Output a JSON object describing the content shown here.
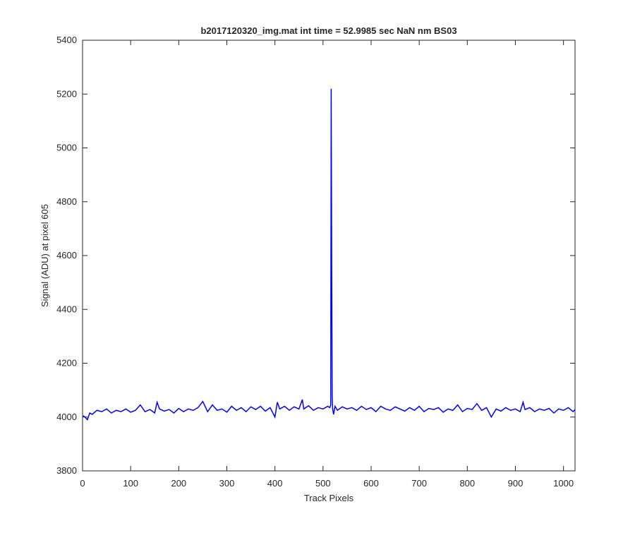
{
  "chart_data": {
    "type": "line",
    "title": "b2017120320_img.mat int time = 52.9985 sec  NaN nm BS03",
    "x_label": "Track Pixels",
    "y_label": "Signal (ADU) at pixel 605",
    "xlim": [
      0,
      1024
    ],
    "xticks": [
      0,
      100,
      200,
      300,
      400,
      500,
      600,
      700,
      800,
      900,
      1000
    ],
    "ylim": [
      3800,
      5400
    ],
    "yticks": [
      3800,
      4000,
      4200,
      4400,
      4600,
      4800,
      5000,
      5200,
      5400
    ],
    "grid": false,
    "x": [
      1,
      5,
      10,
      15,
      20,
      30,
      40,
      50,
      60,
      70,
      80,
      90,
      100,
      110,
      120,
      130,
      140,
      150,
      155,
      160,
      170,
      180,
      190,
      200,
      210,
      220,
      230,
      240,
      250,
      260,
      270,
      280,
      290,
      300,
      310,
      320,
      330,
      340,
      350,
      360,
      370,
      380,
      390,
      400,
      405,
      410,
      420,
      430,
      440,
      450,
      457,
      460,
      470,
      480,
      490,
      500,
      510,
      514,
      516,
      517,
      518,
      519,
      520,
      522,
      525,
      530,
      540,
      550,
      560,
      570,
      580,
      590,
      600,
      610,
      620,
      630,
      640,
      650,
      660,
      670,
      680,
      690,
      700,
      710,
      720,
      730,
      740,
      750,
      760,
      770,
      780,
      790,
      800,
      810,
      820,
      830,
      840,
      850,
      860,
      870,
      880,
      890,
      900,
      910,
      916,
      920,
      930,
      940,
      950,
      960,
      970,
      980,
      990,
      1000,
      1010,
      1020,
      1024
    ],
    "series": [
      {
        "color": "#0000ff",
        "values": [
          4005,
          4000,
          3990,
          4015,
          4010,
          4025,
          4020,
          4030,
          4015,
          4025,
          4020,
          4030,
          4018,
          4025,
          4045,
          4020,
          4028,
          4015,
          4055,
          4030,
          4022,
          4028,
          4015,
          4032,
          4020,
          4030,
          4025,
          4035,
          4058,
          4020,
          4045,
          4025,
          4030,
          4018,
          4040,
          4025,
          4035,
          4020,
          4038,
          4028,
          4040,
          4022,
          4035,
          4000,
          4055,
          4030,
          4040,
          4025,
          4038,
          4030,
          4065,
          4030,
          4042,
          4025,
          4035,
          4030,
          4040,
          4035,
          4045,
          5220,
          4600,
          4080,
          4030,
          4010,
          4040,
          4025,
          4038,
          4030,
          4035,
          4025,
          4040,
          4028,
          4035,
          4020,
          4040,
          4030,
          4025,
          4038,
          4030,
          4022,
          4035,
          4025,
          4040,
          4020,
          4032,
          4028,
          4035,
          4018,
          4030,
          4025,
          4045,
          4020,
          4032,
          4028,
          4050,
          4025,
          4035,
          4000,
          4030,
          4022,
          4035,
          4025,
          4030,
          4020,
          4055,
          4028,
          4035,
          4020,
          4030,
          4025,
          4032,
          4015,
          4030,
          4025,
          4035,
          4020,
          4028
        ]
      }
    ]
  }
}
